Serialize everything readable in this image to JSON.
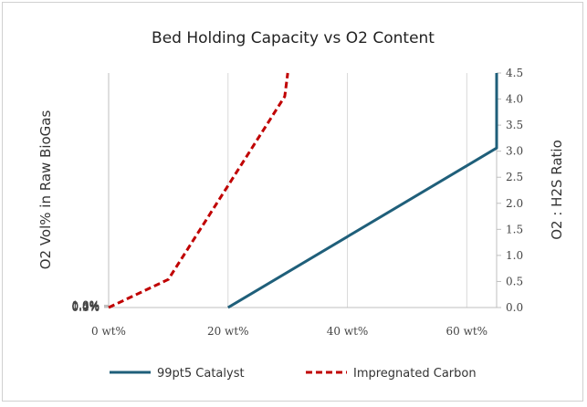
{
  "chart_data": {
    "type": "line",
    "title": "Bed Holding Capacity vs O2 Content",
    "xlabel": "",
    "ylabel": "O2 Vol% in Raw BioGas",
    "y2label": "O2 : H2S Ratio",
    "xlim": [
      0,
      65
    ],
    "ylim": [
      0,
      1.0
    ],
    "y2lim": [
      0,
      4.5
    ],
    "grid": {
      "x_major": true,
      "y_major": false
    },
    "x_ticks": [
      "0 wt%",
      "20 wt%",
      "40 wt%",
      "60 wt%"
    ],
    "y_ticks": [
      "0.0%",
      "0.2%",
      "0.4%",
      "0.6%",
      "0.8%",
      "1.0%"
    ],
    "y2_ticks": [
      "0.0",
      "0.5",
      "1.0",
      "1.5",
      "2.0",
      "2.5",
      "3.0",
      "3.5",
      "4.0",
      "4.5"
    ],
    "legend_position": "bottom",
    "series": [
      {
        "name": "99pt5 Catalyst",
        "color": "#1f5f7a",
        "style": "solid",
        "points": [
          [
            20,
            0.0
          ],
          [
            65,
            0.68
          ],
          [
            65,
            1.0
          ]
        ]
      },
      {
        "name": "Impregnated Carbon",
        "color": "#c00000",
        "style": "dashed",
        "points": [
          [
            0,
            0.0
          ],
          [
            10,
            0.12
          ],
          [
            20,
            0.52
          ],
          [
            29.5,
            0.9
          ],
          [
            30,
            1.0
          ]
        ]
      }
    ]
  }
}
